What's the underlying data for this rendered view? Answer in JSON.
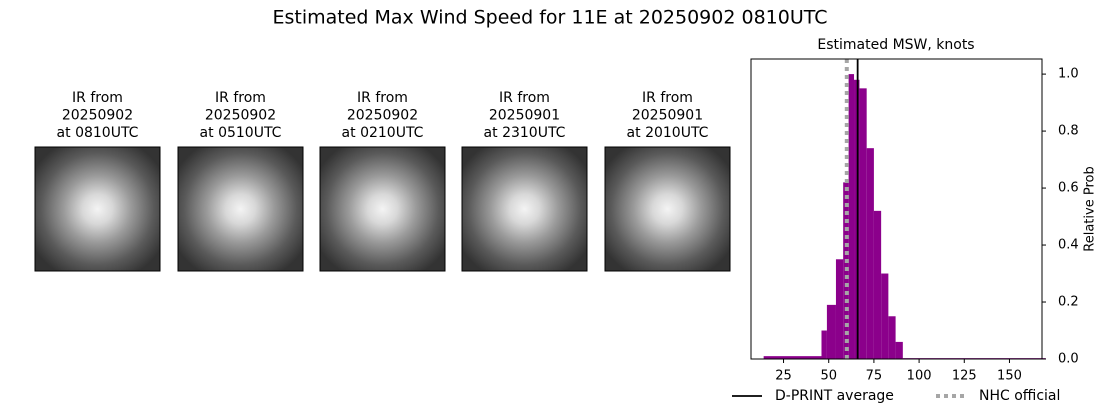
{
  "chart_data": {
    "type": "histogram",
    "suptitle": "Estimated Max Wind Speed for 11E at 20250902 0810UTC",
    "title": "Estimated MSW, knots",
    "ylabel": "Relative Prob",
    "panels": [
      {
        "lines": [
          "IR from",
          "20250902",
          "at 0810UTC"
        ]
      },
      {
        "lines": [
          "IR from",
          "20250902",
          "at 0510UTC"
        ]
      },
      {
        "lines": [
          "IR from",
          "20250902",
          "at 0210UTC"
        ]
      },
      {
        "lines": [
          "IR from",
          "20250901",
          "at 2310UTC"
        ]
      },
      {
        "lines": [
          "IR from",
          "20250901",
          "at 2010UTC"
        ]
      }
    ],
    "bins": [
      14,
      46,
      49,
      54,
      58,
      61,
      64,
      67,
      71,
      75,
      79,
      83,
      87,
      91,
      170
    ],
    "values": [
      0.01,
      0.1,
      0.19,
      0.35,
      0.62,
      1.0,
      0.98,
      0.95,
      0.74,
      0.52,
      0.3,
      0.15,
      0.06,
      0.003
    ],
    "color": "#8b008b",
    "lines": [
      {
        "name": "D-PRINT average",
        "value": 66,
        "color": "#000000",
        "dash": "solid"
      },
      {
        "name": "NHC official",
        "value": 60,
        "color": "#a6a6a6",
        "dash": "dotted"
      }
    ],
    "xlim": [
      7,
      168
    ],
    "ylim": [
      0,
      1.053
    ],
    "xticks": [
      25,
      50,
      75,
      100,
      125,
      150
    ],
    "yticks": [
      {
        "value": 0,
        "label": "0.0"
      },
      0.2,
      0.4,
      0.6,
      0.8,
      {
        "value": 1,
        "label": "1.0"
      }
    ],
    "legend": "bottom"
  }
}
